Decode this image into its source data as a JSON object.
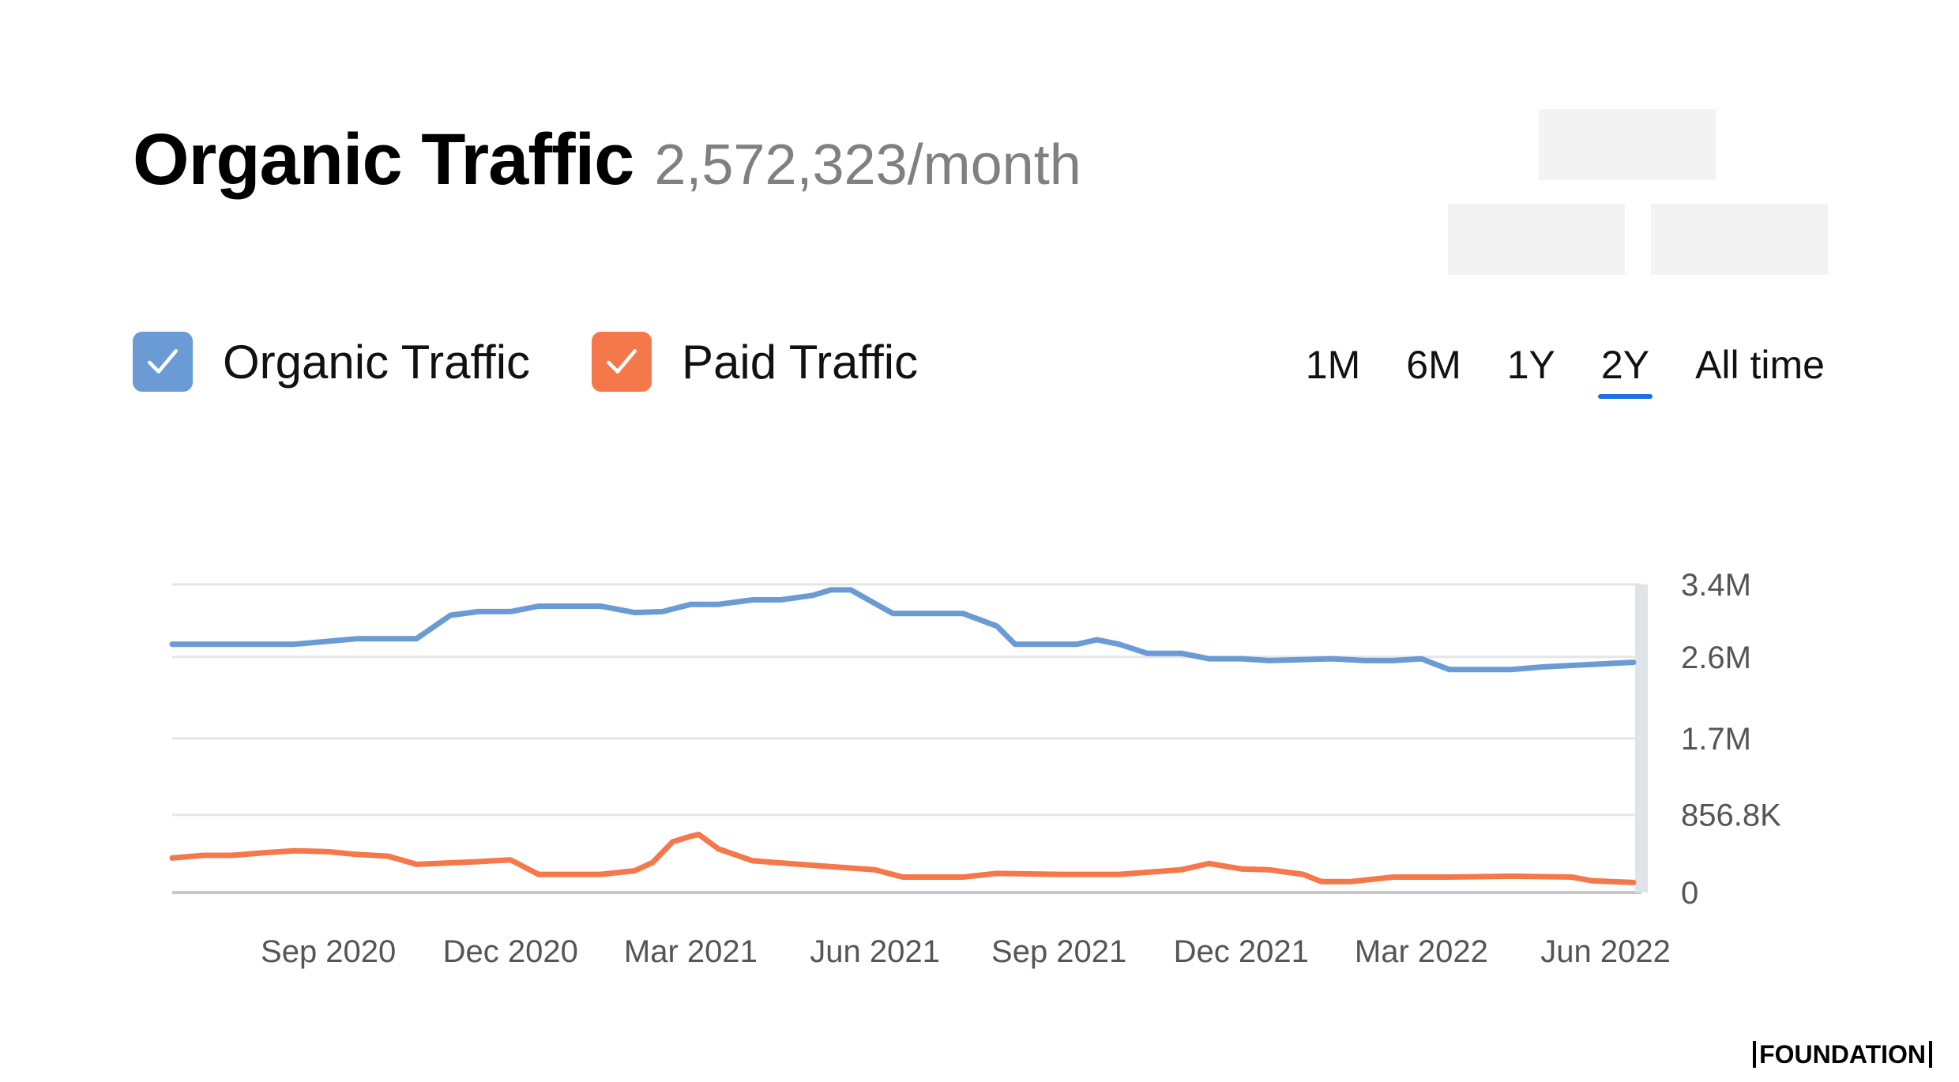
{
  "header": {
    "title": "Organic Traffic",
    "value": "2,572,323/month"
  },
  "legend": [
    {
      "label": "Organic Traffic",
      "color": "#6a9bd4",
      "checked": true
    },
    {
      "label": "Paid Traffic",
      "color": "#f4784a",
      "checked": true
    }
  ],
  "ranges": [
    {
      "label": "1M",
      "active": false
    },
    {
      "label": "6M",
      "active": false
    },
    {
      "label": "1Y",
      "active": false
    },
    {
      "label": "2Y",
      "active": true
    },
    {
      "label": "All time",
      "active": false
    }
  ],
  "brand": "FOUNDATION",
  "chart_data": {
    "type": "line",
    "x_range": [
      "2020-06-15",
      "2022-06-15"
    ],
    "x_ticks": [
      {
        "date": "2020-09-01",
        "label": "Sep 2020"
      },
      {
        "date": "2020-12-01",
        "label": "Dec 2020"
      },
      {
        "date": "2021-03-01",
        "label": "Mar 2021"
      },
      {
        "date": "2021-06-01",
        "label": "Jun 2021"
      },
      {
        "date": "2021-09-01",
        "label": "Sep 2021"
      },
      {
        "date": "2021-12-01",
        "label": "Dec 2021"
      },
      {
        "date": "2022-03-01",
        "label": "Mar 2022"
      },
      {
        "date": "2022-06-01",
        "label": "Jun 2022"
      }
    ],
    "y_ticks": [
      {
        "value": 0,
        "label": "0"
      },
      {
        "value": 856800,
        "label": "856.8K"
      },
      {
        "value": 1700000,
        "label": "1.7M"
      },
      {
        "value": 2600000,
        "label": "2.6M"
      },
      {
        "value": 3400000,
        "label": "3.4M"
      }
    ],
    "ylim": [
      0,
      3400000
    ],
    "grid": true,
    "series": [
      {
        "name": "Organic Traffic",
        "color": "#6a9bd4",
        "points": [
          [
            "2020-06-15",
            2740000
          ],
          [
            "2020-08-15",
            2740000
          ],
          [
            "2020-09-15",
            2800000
          ],
          [
            "2020-10-15",
            2800000
          ],
          [
            "2020-11-01",
            3060000
          ],
          [
            "2020-11-15",
            3100000
          ],
          [
            "2020-12-01",
            3100000
          ],
          [
            "2020-12-15",
            3160000
          ],
          [
            "2021-01-15",
            3160000
          ],
          [
            "2021-02-01",
            3090000
          ],
          [
            "2021-02-15",
            3100000
          ],
          [
            "2021-03-01",
            3180000
          ],
          [
            "2021-03-15",
            3180000
          ],
          [
            "2021-04-01",
            3230000
          ],
          [
            "2021-04-15",
            3230000
          ],
          [
            "2021-05-01",
            3280000
          ],
          [
            "2021-05-10",
            3340000
          ],
          [
            "2021-05-20",
            3340000
          ],
          [
            "2021-06-01",
            3190000
          ],
          [
            "2021-06-10",
            3080000
          ],
          [
            "2021-07-15",
            3080000
          ],
          [
            "2021-08-01",
            2940000
          ],
          [
            "2021-08-10",
            2740000
          ],
          [
            "2021-09-10",
            2740000
          ],
          [
            "2021-09-20",
            2790000
          ],
          [
            "2021-10-01",
            2740000
          ],
          [
            "2021-10-15",
            2640000
          ],
          [
            "2021-11-01",
            2640000
          ],
          [
            "2021-11-15",
            2580000
          ],
          [
            "2021-12-01",
            2580000
          ],
          [
            "2021-12-15",
            2560000
          ],
          [
            "2022-01-15",
            2580000
          ],
          [
            "2022-02-01",
            2560000
          ],
          [
            "2022-02-15",
            2560000
          ],
          [
            "2022-03-01",
            2580000
          ],
          [
            "2022-03-15",
            2460000
          ],
          [
            "2022-04-15",
            2460000
          ],
          [
            "2022-05-01",
            2490000
          ],
          [
            "2022-06-15",
            2540000
          ]
        ]
      },
      {
        "name": "Paid Traffic",
        "color": "#f4784a",
        "points": [
          [
            "2020-06-15",
            380000
          ],
          [
            "2020-07-01",
            410000
          ],
          [
            "2020-07-15",
            410000
          ],
          [
            "2020-08-01",
            440000
          ],
          [
            "2020-08-15",
            460000
          ],
          [
            "2020-09-01",
            450000
          ],
          [
            "2020-09-15",
            420000
          ],
          [
            "2020-10-01",
            400000
          ],
          [
            "2020-10-15",
            310000
          ],
          [
            "2020-11-15",
            340000
          ],
          [
            "2020-12-01",
            360000
          ],
          [
            "2020-12-15",
            200000
          ],
          [
            "2021-01-15",
            200000
          ],
          [
            "2021-02-01",
            240000
          ],
          [
            "2021-02-10",
            330000
          ],
          [
            "2021-02-20",
            560000
          ],
          [
            "2021-03-01",
            620000
          ],
          [
            "2021-03-05",
            640000
          ],
          [
            "2021-03-15",
            480000
          ],
          [
            "2021-04-01",
            350000
          ],
          [
            "2021-05-01",
            300000
          ],
          [
            "2021-06-01",
            250000
          ],
          [
            "2021-06-15",
            170000
          ],
          [
            "2021-07-15",
            170000
          ],
          [
            "2021-08-01",
            210000
          ],
          [
            "2021-09-01",
            200000
          ],
          [
            "2021-10-01",
            200000
          ],
          [
            "2021-11-01",
            250000
          ],
          [
            "2021-11-15",
            320000
          ],
          [
            "2021-12-01",
            260000
          ],
          [
            "2021-12-15",
            250000
          ],
          [
            "2022-01-01",
            200000
          ],
          [
            "2022-01-10",
            120000
          ],
          [
            "2022-01-25",
            120000
          ],
          [
            "2022-02-15",
            170000
          ],
          [
            "2022-03-15",
            170000
          ],
          [
            "2022-04-15",
            180000
          ],
          [
            "2022-05-15",
            170000
          ],
          [
            "2022-05-25",
            130000
          ],
          [
            "2022-06-15",
            110000
          ]
        ]
      }
    ]
  }
}
